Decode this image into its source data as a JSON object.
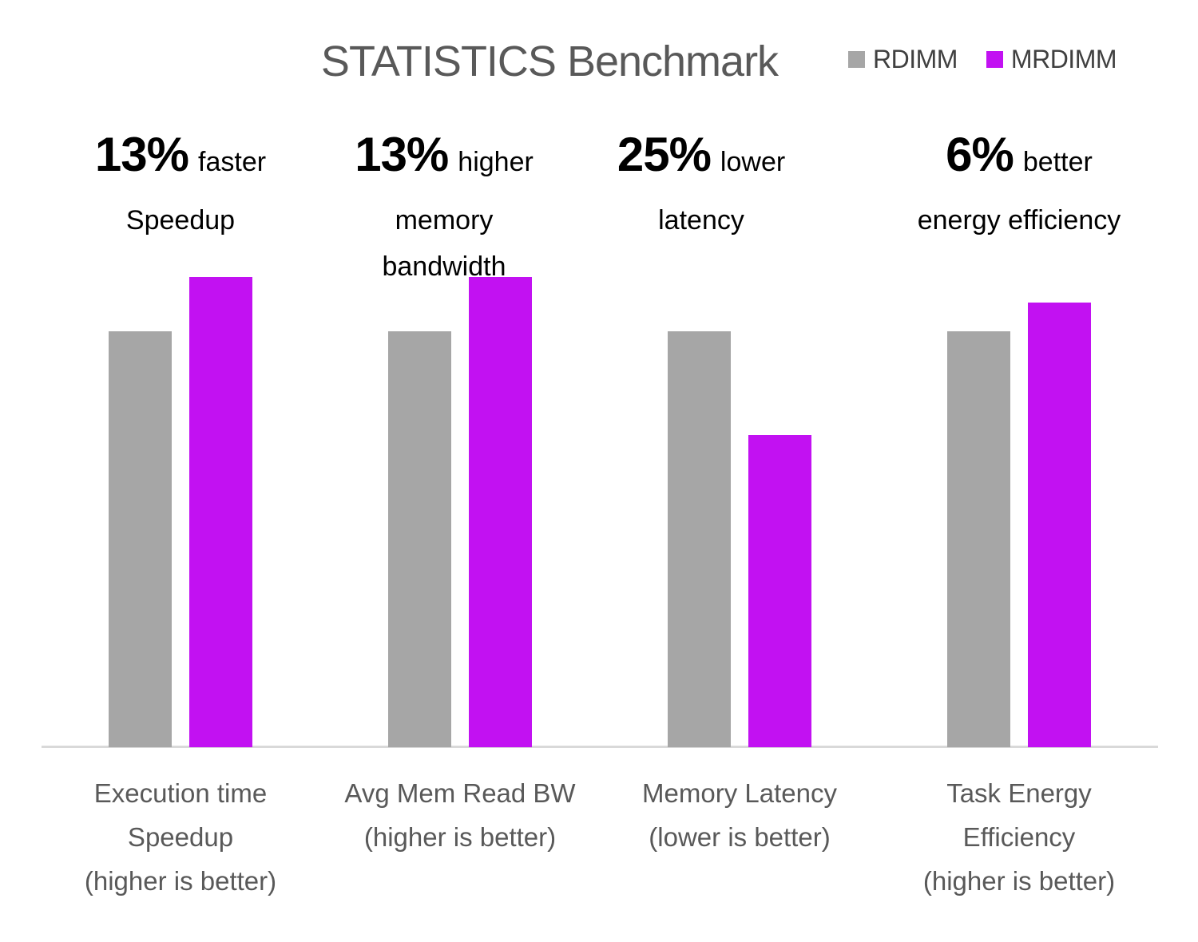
{
  "chart_data": {
    "type": "bar",
    "title": "STATISTICS Benchmark",
    "unit": "relative (RDIMM = 1.0)",
    "categories": [
      "Execution time Speedup (higher is better)",
      "Avg Mem Read BW (higher is better)",
      "Memory Latency (lower is better)",
      "Task Energy Efficiency (higher is better)"
    ],
    "category_lines": [
      [
        "Execution time",
        "Speedup",
        "(higher is better)"
      ],
      [
        "Avg Mem Read BW",
        "(higher is better)"
      ],
      [
        "Memory Latency",
        "(lower is better)"
      ],
      [
        "Task Energy",
        "Efficiency",
        "(higher is better)"
      ]
    ],
    "series": [
      {
        "name": "RDIMM",
        "color": "#a6a6a6",
        "values": [
          1.0,
          1.0,
          1.0,
          1.0
        ]
      },
      {
        "name": "MRDIMM",
        "color": "#c211f2",
        "values": [
          1.13,
          1.13,
          0.75,
          1.07
        ]
      }
    ],
    "ylim": [
      0,
      1.15
    ],
    "y_axis_visible": false,
    "gridlines": false,
    "legend_position": "top-right",
    "baseline_color": "#d9d9d9"
  },
  "annotations": [
    {
      "pct": "13%",
      "word": "faster",
      "lines": [
        "Speedup"
      ]
    },
    {
      "pct": "13%",
      "word": "higher",
      "lines": [
        "memory",
        "bandwidth"
      ]
    },
    {
      "pct": "25%",
      "word": "lower",
      "lines": [
        "latency"
      ]
    },
    {
      "pct": "6%",
      "word": "better",
      "lines": [
        "energy efficiency"
      ]
    }
  ]
}
